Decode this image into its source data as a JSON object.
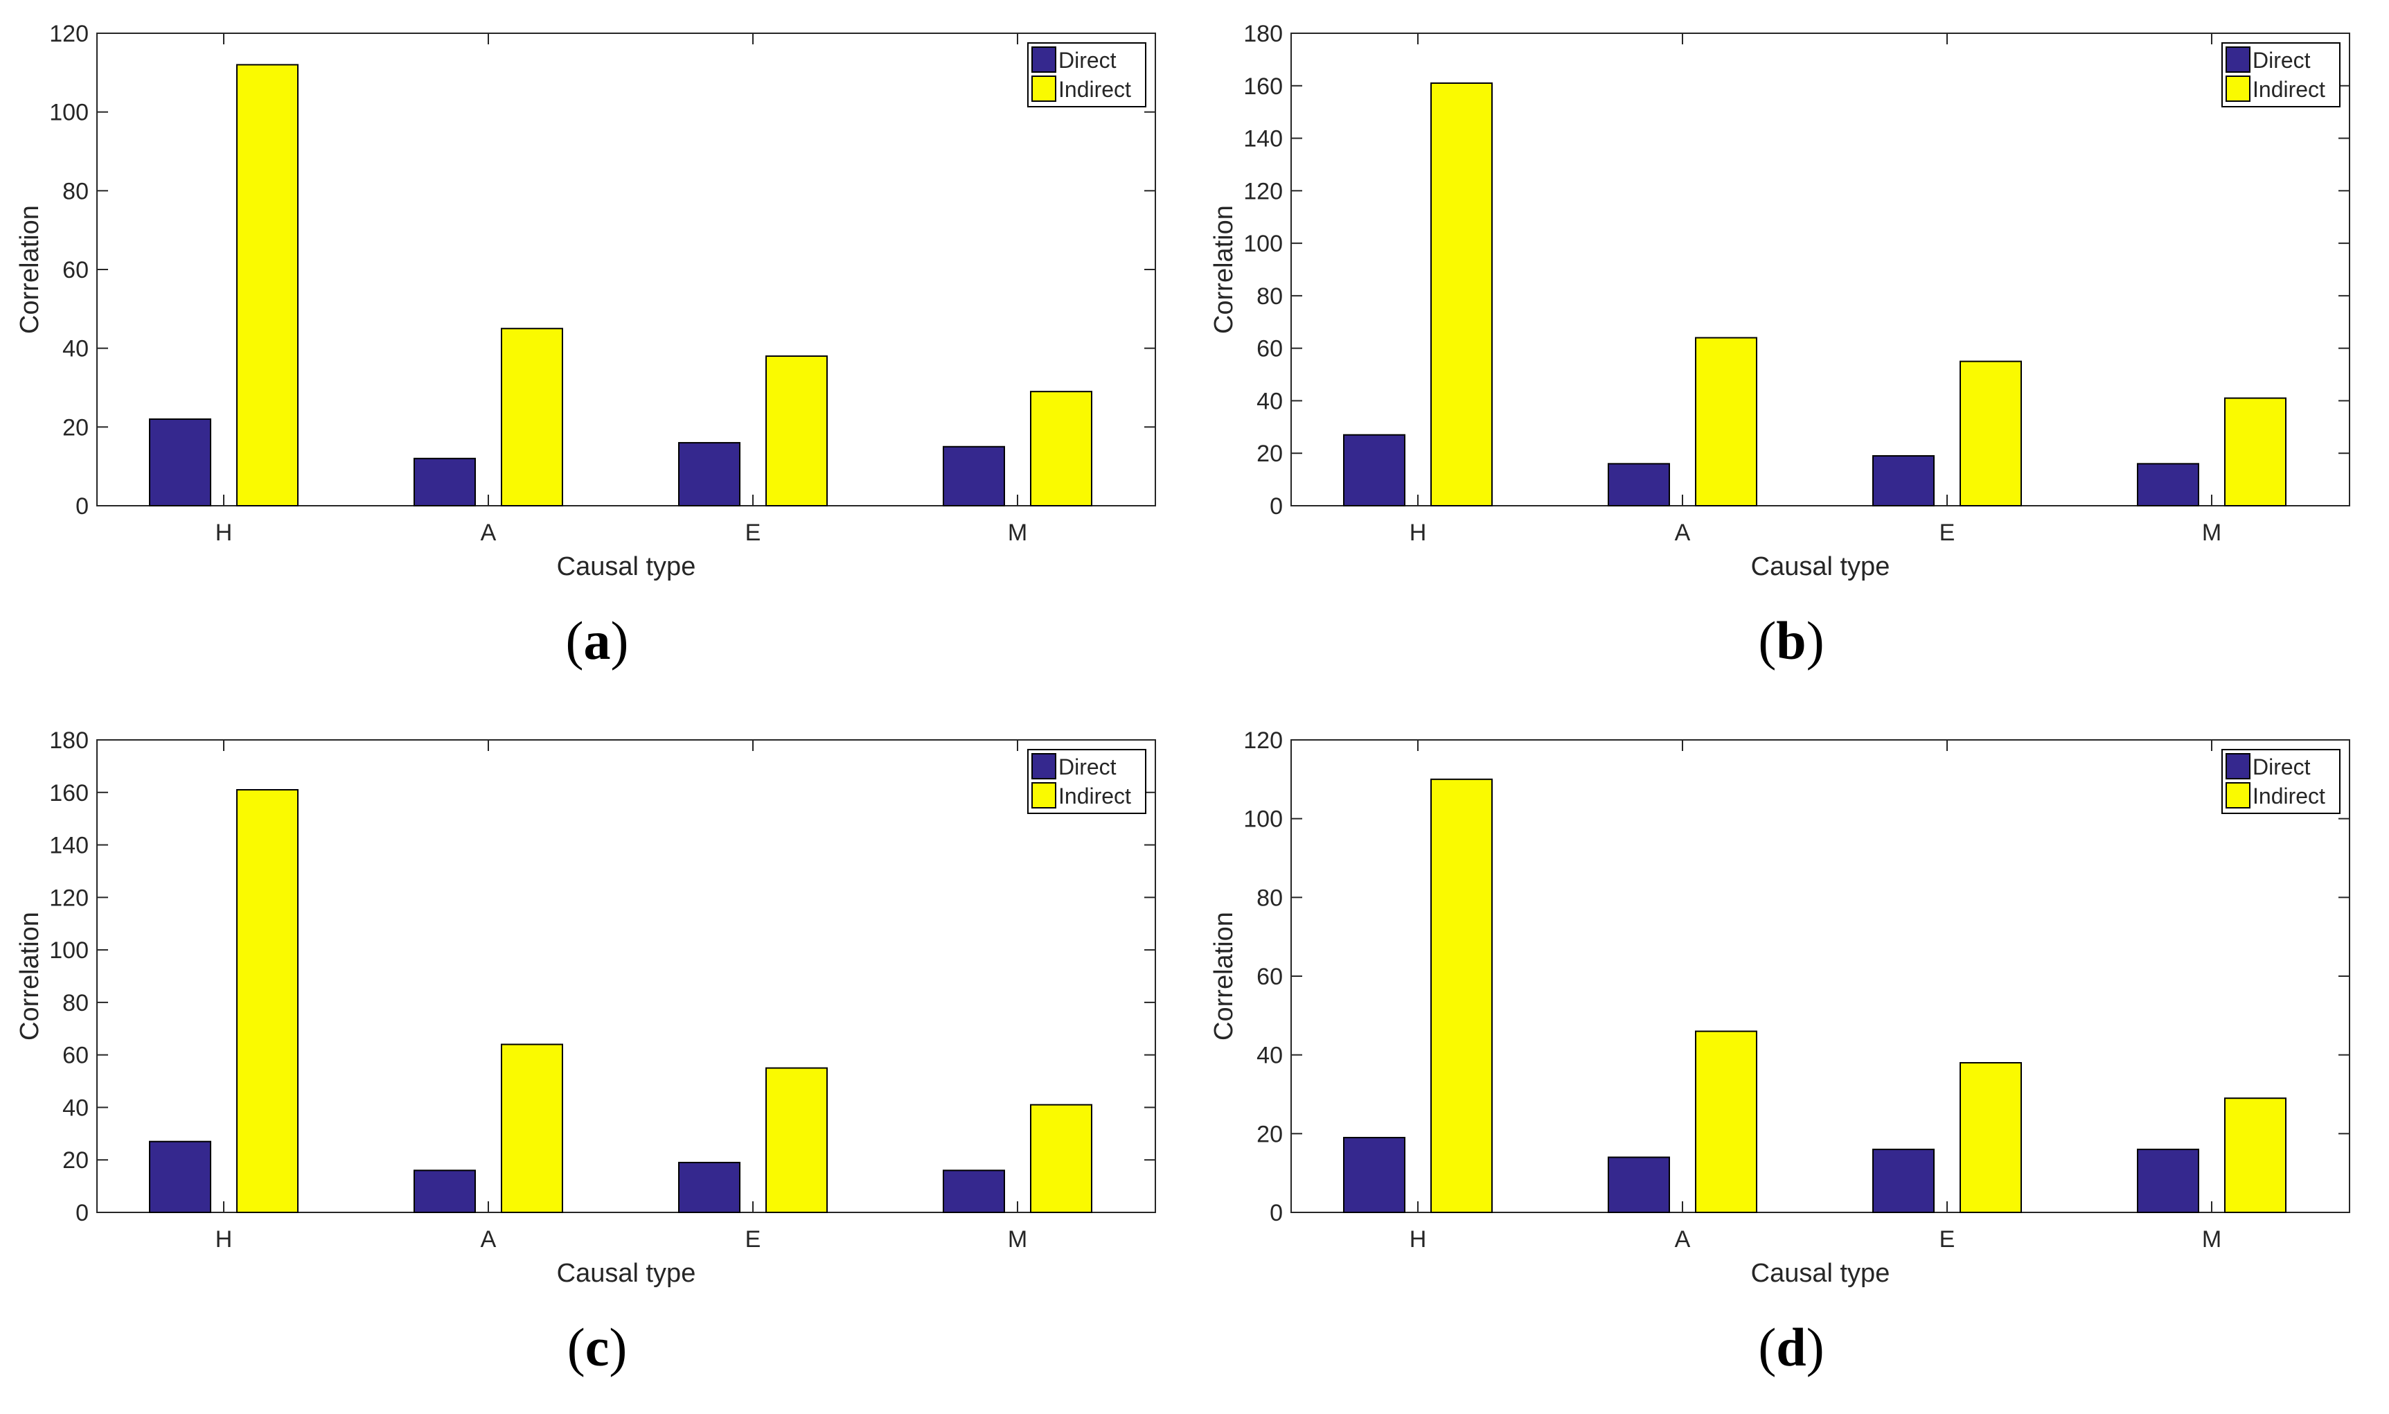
{
  "figure": {
    "colors": {
      "direct": "#35288E",
      "indirect": "#FAFA00",
      "axis": "#262626",
      "edge": "#000000"
    },
    "panels": [
      {
        "label": "a"
      },
      {
        "label": "b"
      },
      {
        "label": "c"
      },
      {
        "label": "d"
      }
    ]
  },
  "chart_data": [
    {
      "type": "bar",
      "panel": "a",
      "categories": [
        "H",
        "A",
        "E",
        "M"
      ],
      "series": [
        {
          "name": "Direct",
          "values": [
            22,
            12,
            16,
            15
          ]
        },
        {
          "name": "Indirect",
          "values": [
            112,
            45,
            38,
            29
          ]
        }
      ],
      "xlabel": "Causal type",
      "ylabel": "Correlation",
      "ylim": [
        0,
        120
      ],
      "yticks": [
        0,
        20,
        40,
        60,
        80,
        100,
        120
      ],
      "legend": "top-right",
      "grid": false
    },
    {
      "type": "bar",
      "panel": "b",
      "categories": [
        "H",
        "A",
        "E",
        "M"
      ],
      "series": [
        {
          "name": "Direct",
          "values": [
            27,
            16,
            19,
            16
          ]
        },
        {
          "name": "Indirect",
          "values": [
            161,
            64,
            55,
            41
          ]
        }
      ],
      "xlabel": "Causal type",
      "ylabel": "Correlation",
      "ylim": [
        0,
        180
      ],
      "yticks": [
        0,
        20,
        40,
        60,
        80,
        100,
        120,
        140,
        160,
        180
      ],
      "legend": "top-right",
      "grid": false
    },
    {
      "type": "bar",
      "panel": "c",
      "categories": [
        "H",
        "A",
        "E",
        "M"
      ],
      "series": [
        {
          "name": "Direct",
          "values": [
            27,
            16,
            19,
            16
          ]
        },
        {
          "name": "Indirect",
          "values": [
            161,
            64,
            55,
            41
          ]
        }
      ],
      "xlabel": "Causal type",
      "ylabel": "Correlation",
      "ylim": [
        0,
        180
      ],
      "yticks": [
        0,
        20,
        40,
        60,
        80,
        100,
        120,
        140,
        160,
        180
      ],
      "legend": "top-right",
      "grid": false
    },
    {
      "type": "bar",
      "panel": "d",
      "categories": [
        "H",
        "A",
        "E",
        "M"
      ],
      "series": [
        {
          "name": "Direct",
          "values": [
            19,
            14,
            16,
            16
          ]
        },
        {
          "name": "Indirect",
          "values": [
            110,
            46,
            38,
            29
          ]
        }
      ],
      "xlabel": "Causal type",
      "ylabel": "Correlation",
      "ylim": [
        0,
        120
      ],
      "yticks": [
        0,
        20,
        40,
        60,
        80,
        100,
        120
      ],
      "legend": "top-right",
      "grid": false
    }
  ]
}
